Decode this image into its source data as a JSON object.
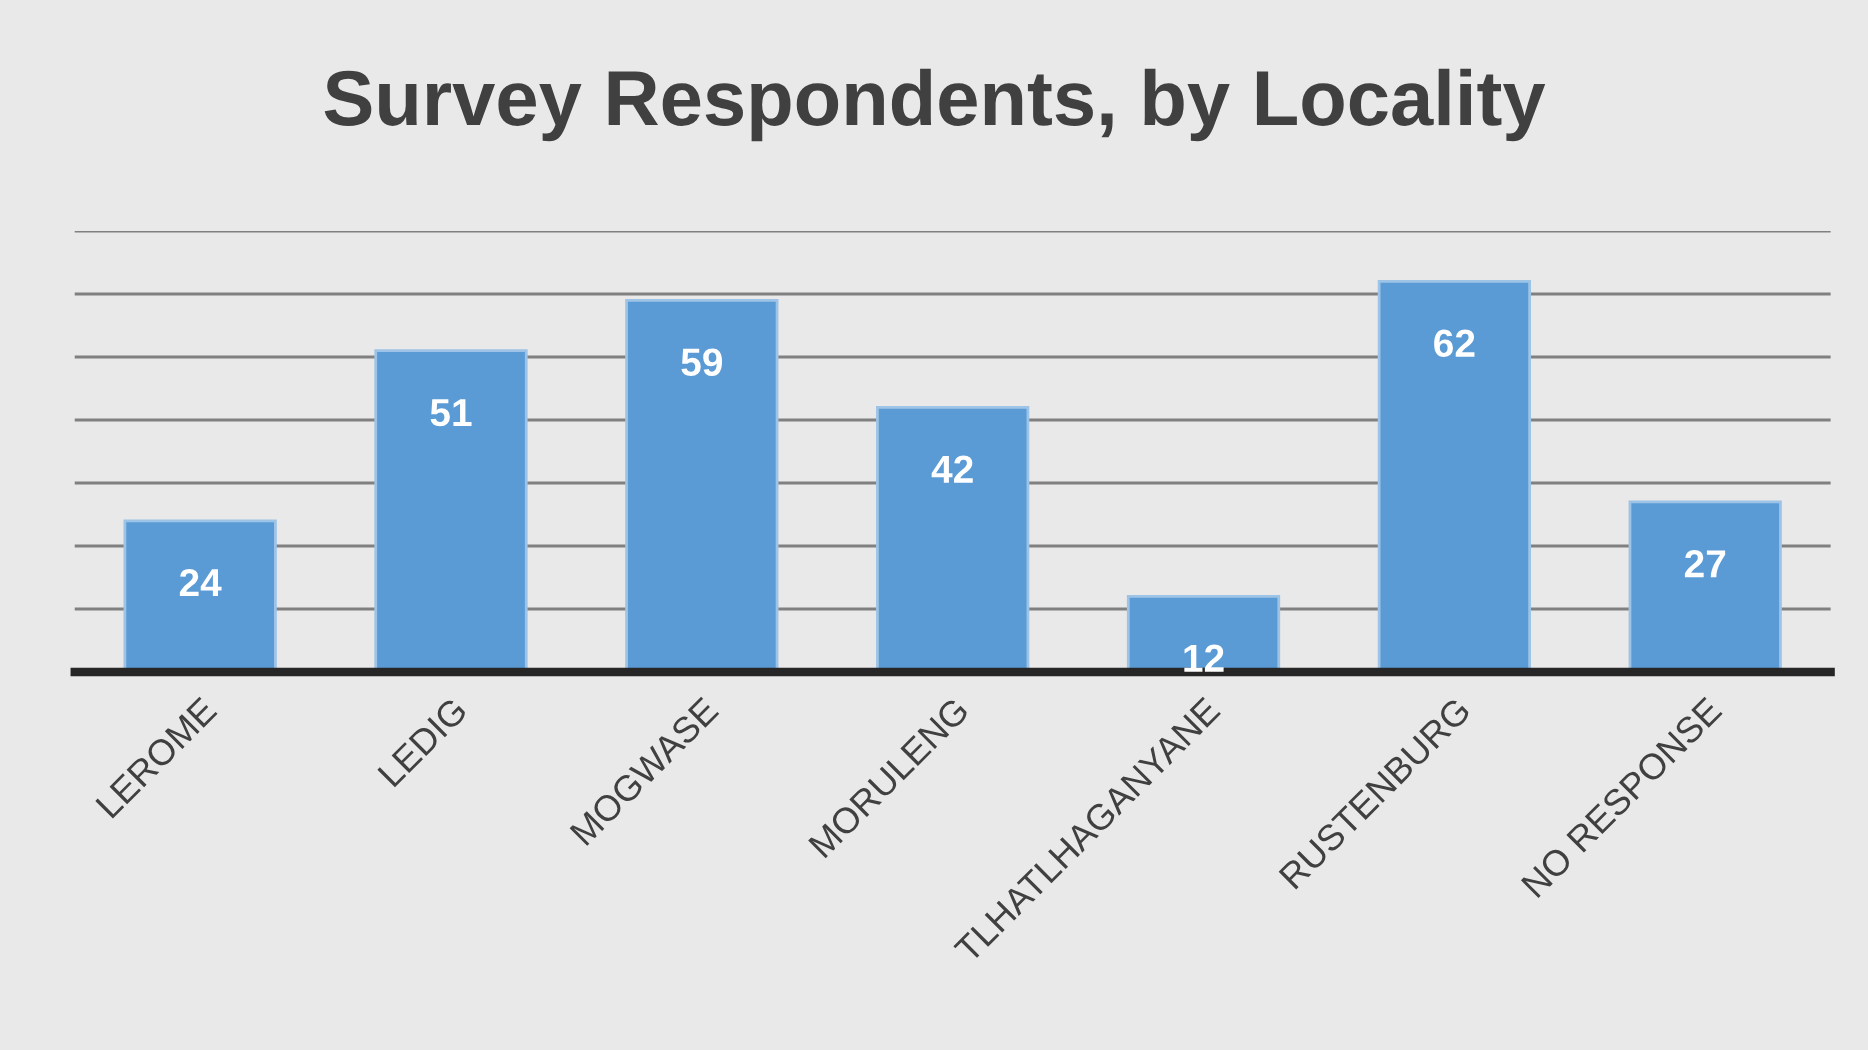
{
  "chart_data": {
    "type": "bar",
    "title": "Survey Respondents, by Locality",
    "categories": [
      "LEROME",
      "LEDIG",
      "MOGWASE",
      "MORULENG",
      "TLHATLHAGANYANE",
      "RUSTENBURG",
      "NO RESPONSE"
    ],
    "values": [
      24,
      51,
      59,
      42,
      12,
      62,
      27
    ],
    "color": "#5b9bd5",
    "ylim": [
      0,
      70
    ],
    "yticks": [
      {
        "value": 0,
        "label": null
      },
      {
        "value": 10,
        "label": null
      },
      {
        "value": 20,
        "label": null
      },
      {
        "value": 30,
        "label": null
      },
      {
        "value": 40,
        "label": null
      },
      {
        "value": 50,
        "label": null
      },
      {
        "value": 60,
        "label": null
      },
      {
        "value": 70,
        "label": null
      }
    ],
    "tick_labels": "x",
    "grid": "y",
    "data_labels": true
  }
}
